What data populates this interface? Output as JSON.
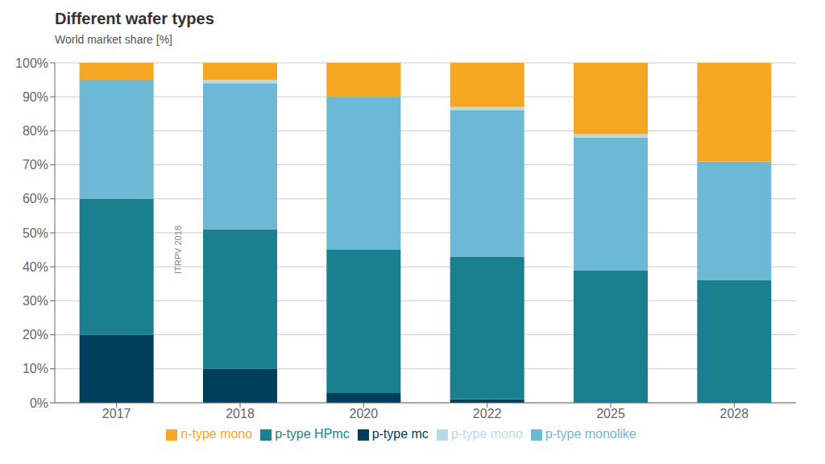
{
  "chart_data": {
    "type": "bar",
    "stacked": true,
    "title": "Different wafer types",
    "subtitle": "World market share [%]",
    "annotations": [
      "ITRPV 2018"
    ],
    "categories": [
      "2017",
      "2018",
      "2020",
      "2022",
      "2025",
      "2028"
    ],
    "series": [
      {
        "name": "p-type mc",
        "color": "#003f5c",
        "values": [
          20,
          10,
          3,
          1,
          0,
          0
        ]
      },
      {
        "name": "p-type HPmc",
        "color": "#1a7f8e",
        "values": [
          40,
          41,
          42,
          42,
          39,
          36
        ]
      },
      {
        "name": "p-type monolike",
        "color": "#6db8d4",
        "values": [
          35,
          43,
          45,
          43,
          39,
          35
        ]
      },
      {
        "name": "p-type mono",
        "color": "#b8d9e8",
        "values": [
          0,
          1,
          0,
          1,
          1,
          0
        ]
      },
      {
        "name": "n-type mono",
        "color": "#f5a623",
        "values": [
          5,
          5,
          10,
          13,
          21,
          29
        ]
      }
    ],
    "ylim": [
      0,
      100
    ],
    "yticks": [
      {
        "value": 0,
        "label": "0%"
      },
      {
        "value": 10,
        "label": "10%"
      },
      {
        "value": 20,
        "label": "20%"
      },
      {
        "value": 30,
        "label": "30%"
      },
      {
        "value": 40,
        "label": "40%"
      },
      {
        "value": 50,
        "label": "50%"
      },
      {
        "value": 60,
        "label": "60%"
      },
      {
        "value": 70,
        "label": "70%"
      },
      {
        "value": 80,
        "label": "80%"
      },
      {
        "value": 90,
        "label": "90%"
      },
      {
        "value": 100,
        "label": "100%"
      }
    ],
    "grid": true,
    "legend": "bottom"
  }
}
